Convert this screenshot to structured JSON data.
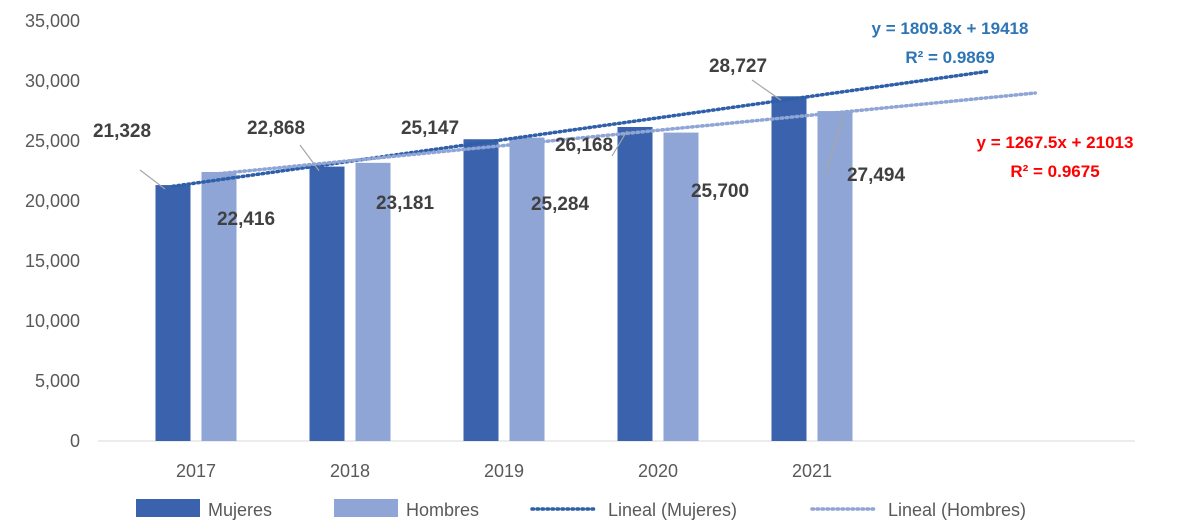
{
  "chart_data": {
    "type": "bar",
    "categories": [
      "2017",
      "2018",
      "2019",
      "2020",
      "2021"
    ],
    "series": [
      {
        "name": "Mujeres",
        "values": [
          21328,
          22868,
          25147,
          26168,
          28727
        ],
        "color": "#3A62AD"
      },
      {
        "name": "Hombres",
        "values": [
          22416,
          23181,
          25284,
          25700,
          27494
        ],
        "color": "#8FA5D6"
      }
    ],
    "data_labels": {
      "Mujeres": [
        "21,328",
        "22,868",
        "25,147",
        "26,168",
        "28,727"
      ],
      "Hombres": [
        "22,416",
        "23,181",
        "25,284",
        "25,700",
        "27,494"
      ]
    },
    "trendlines": [
      {
        "name": "Lineal (Mujeres)",
        "series": "Mujeres",
        "slope": 1809.8,
        "intercept": 19418,
        "equation": "y = 1809.8x + 19418",
        "r2": "R² = 0.9869",
        "color": "#2E5FA8",
        "label_color": "#2E75B6"
      },
      {
        "name": "Lineal (Hombres)",
        "series": "Hombres",
        "slope": 1267.5,
        "intercept": 21013,
        "equation": "y = 1267.5x + 21013",
        "r2": "R² = 0.9675",
        "color": "#8FA5D6",
        "label_color": "#FF0000"
      }
    ],
    "yaxis": {
      "ticks": [
        "0",
        "5,000",
        "10,000",
        "15,000",
        "20,000",
        "25,000",
        "30,000",
        "35,000"
      ],
      "ylim": [
        0,
        35000
      ]
    },
    "title": "",
    "xlabel": "",
    "ylabel": "",
    "grid": false,
    "legend": {
      "position": "bottom",
      "entries": [
        "Mujeres",
        "Hombres",
        "Lineal (Mujeres)",
        "Lineal (Hombres)"
      ]
    }
  }
}
